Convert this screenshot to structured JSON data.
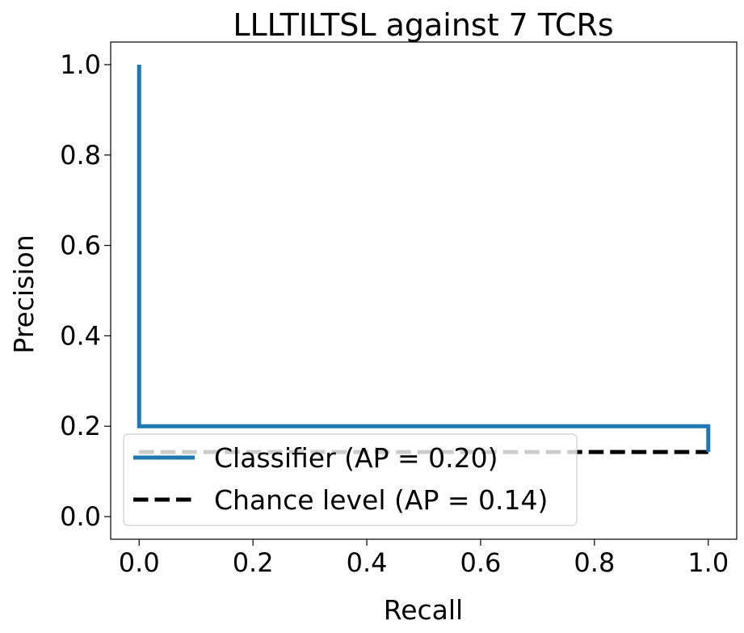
{
  "chart_data": {
    "type": "line",
    "title": "LLLTILTSL against 7 TCRs",
    "xlabel": "Recall",
    "ylabel": "Precision",
    "xlim": [
      -0.05,
      1.05
    ],
    "ylim": [
      -0.05,
      1.05
    ],
    "xticks": [
      "0.0",
      "0.2",
      "0.4",
      "0.6",
      "0.8",
      "1.0"
    ],
    "yticks": [
      "0.0",
      "0.2",
      "0.4",
      "0.6",
      "0.8",
      "1.0"
    ],
    "grid": false,
    "legend_position": "lower-left",
    "series": [
      {
        "name": "Classifier (AP = 0.20)",
        "color": "#1f77b4",
        "style": "solid",
        "x": [
          0.0,
          0.0,
          1.0,
          1.0
        ],
        "y": [
          1.0,
          0.2,
          0.2,
          0.1429
        ]
      },
      {
        "name": "Chance level (AP = 0.14)",
        "color": "#000000",
        "style": "dashed",
        "x": [
          0.0,
          1.0
        ],
        "y": [
          0.1429,
          0.1429
        ]
      }
    ]
  }
}
